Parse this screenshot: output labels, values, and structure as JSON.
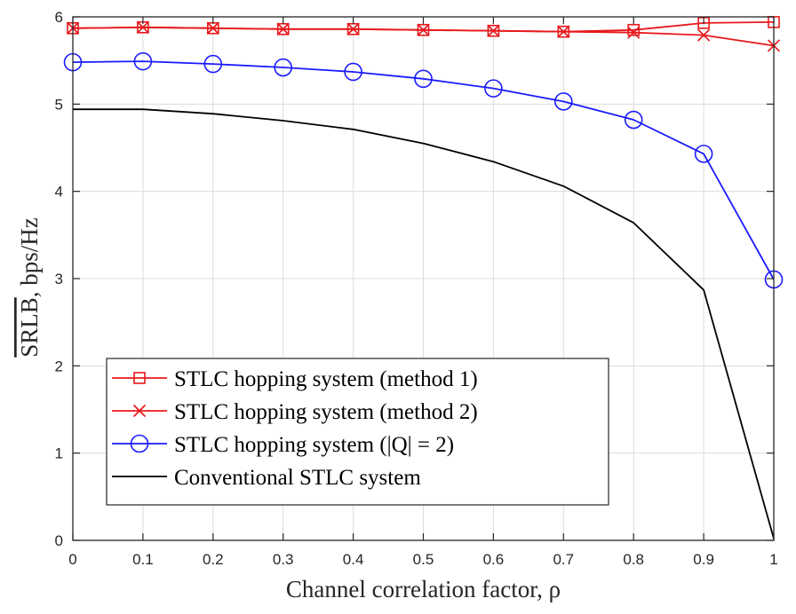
{
  "chart_data": {
    "type": "line",
    "xlabel": "Channel correlation factor, ρ",
    "ylabel": "SRLB, bps/Hz",
    "ylabel_overline": "SRLB",
    "ylabel_rest": ", bps/Hz",
    "xlim": [
      0,
      1
    ],
    "ylim": [
      0,
      6
    ],
    "xticks": [
      0,
      0.1,
      0.2,
      0.3,
      0.4,
      0.5,
      0.6,
      0.7,
      0.8,
      0.9,
      1
    ],
    "yticks": [
      0,
      1,
      2,
      3,
      4,
      5,
      6
    ],
    "xtick_labels": [
      "0",
      "0.1",
      "0.2",
      "0.3",
      "0.4",
      "0.5",
      "0.6",
      "0.7",
      "0.8",
      "0.9",
      "1"
    ],
    "ytick_labels": [
      "0",
      "1",
      "2",
      "3",
      "4",
      "5",
      "6"
    ],
    "grid": true,
    "legend_position": "bottom-left",
    "x": [
      0,
      0.1,
      0.2,
      0.3,
      0.4,
      0.5,
      0.6,
      0.7,
      0.8,
      0.9,
      1
    ],
    "series": [
      {
        "name": "STLC hopping system (method 1)",
        "color": "#e8191c",
        "marker": "square",
        "values": [
          5.87,
          5.88,
          5.87,
          5.86,
          5.86,
          5.85,
          5.84,
          5.83,
          5.85,
          5.93,
          5.94
        ]
      },
      {
        "name": "STLC hopping system (method 2)",
        "color": "#e8191c",
        "marker": "x",
        "values": [
          5.87,
          5.88,
          5.87,
          5.86,
          5.86,
          5.85,
          5.84,
          5.83,
          5.82,
          5.79,
          5.67
        ]
      },
      {
        "name": "STLC hopping system (|Q| = 2)",
        "color": "#1a1aff",
        "marker": "circle",
        "values": [
          5.48,
          5.49,
          5.46,
          5.42,
          5.37,
          5.29,
          5.18,
          5.03,
          4.82,
          4.43,
          2.99
        ]
      },
      {
        "name": "Conventional STLC system",
        "color": "#000000",
        "marker": "none",
        "values": [
          4.94,
          4.94,
          4.89,
          4.81,
          4.71,
          4.55,
          4.34,
          4.06,
          3.64,
          2.87,
          0.02
        ]
      }
    ]
  }
}
